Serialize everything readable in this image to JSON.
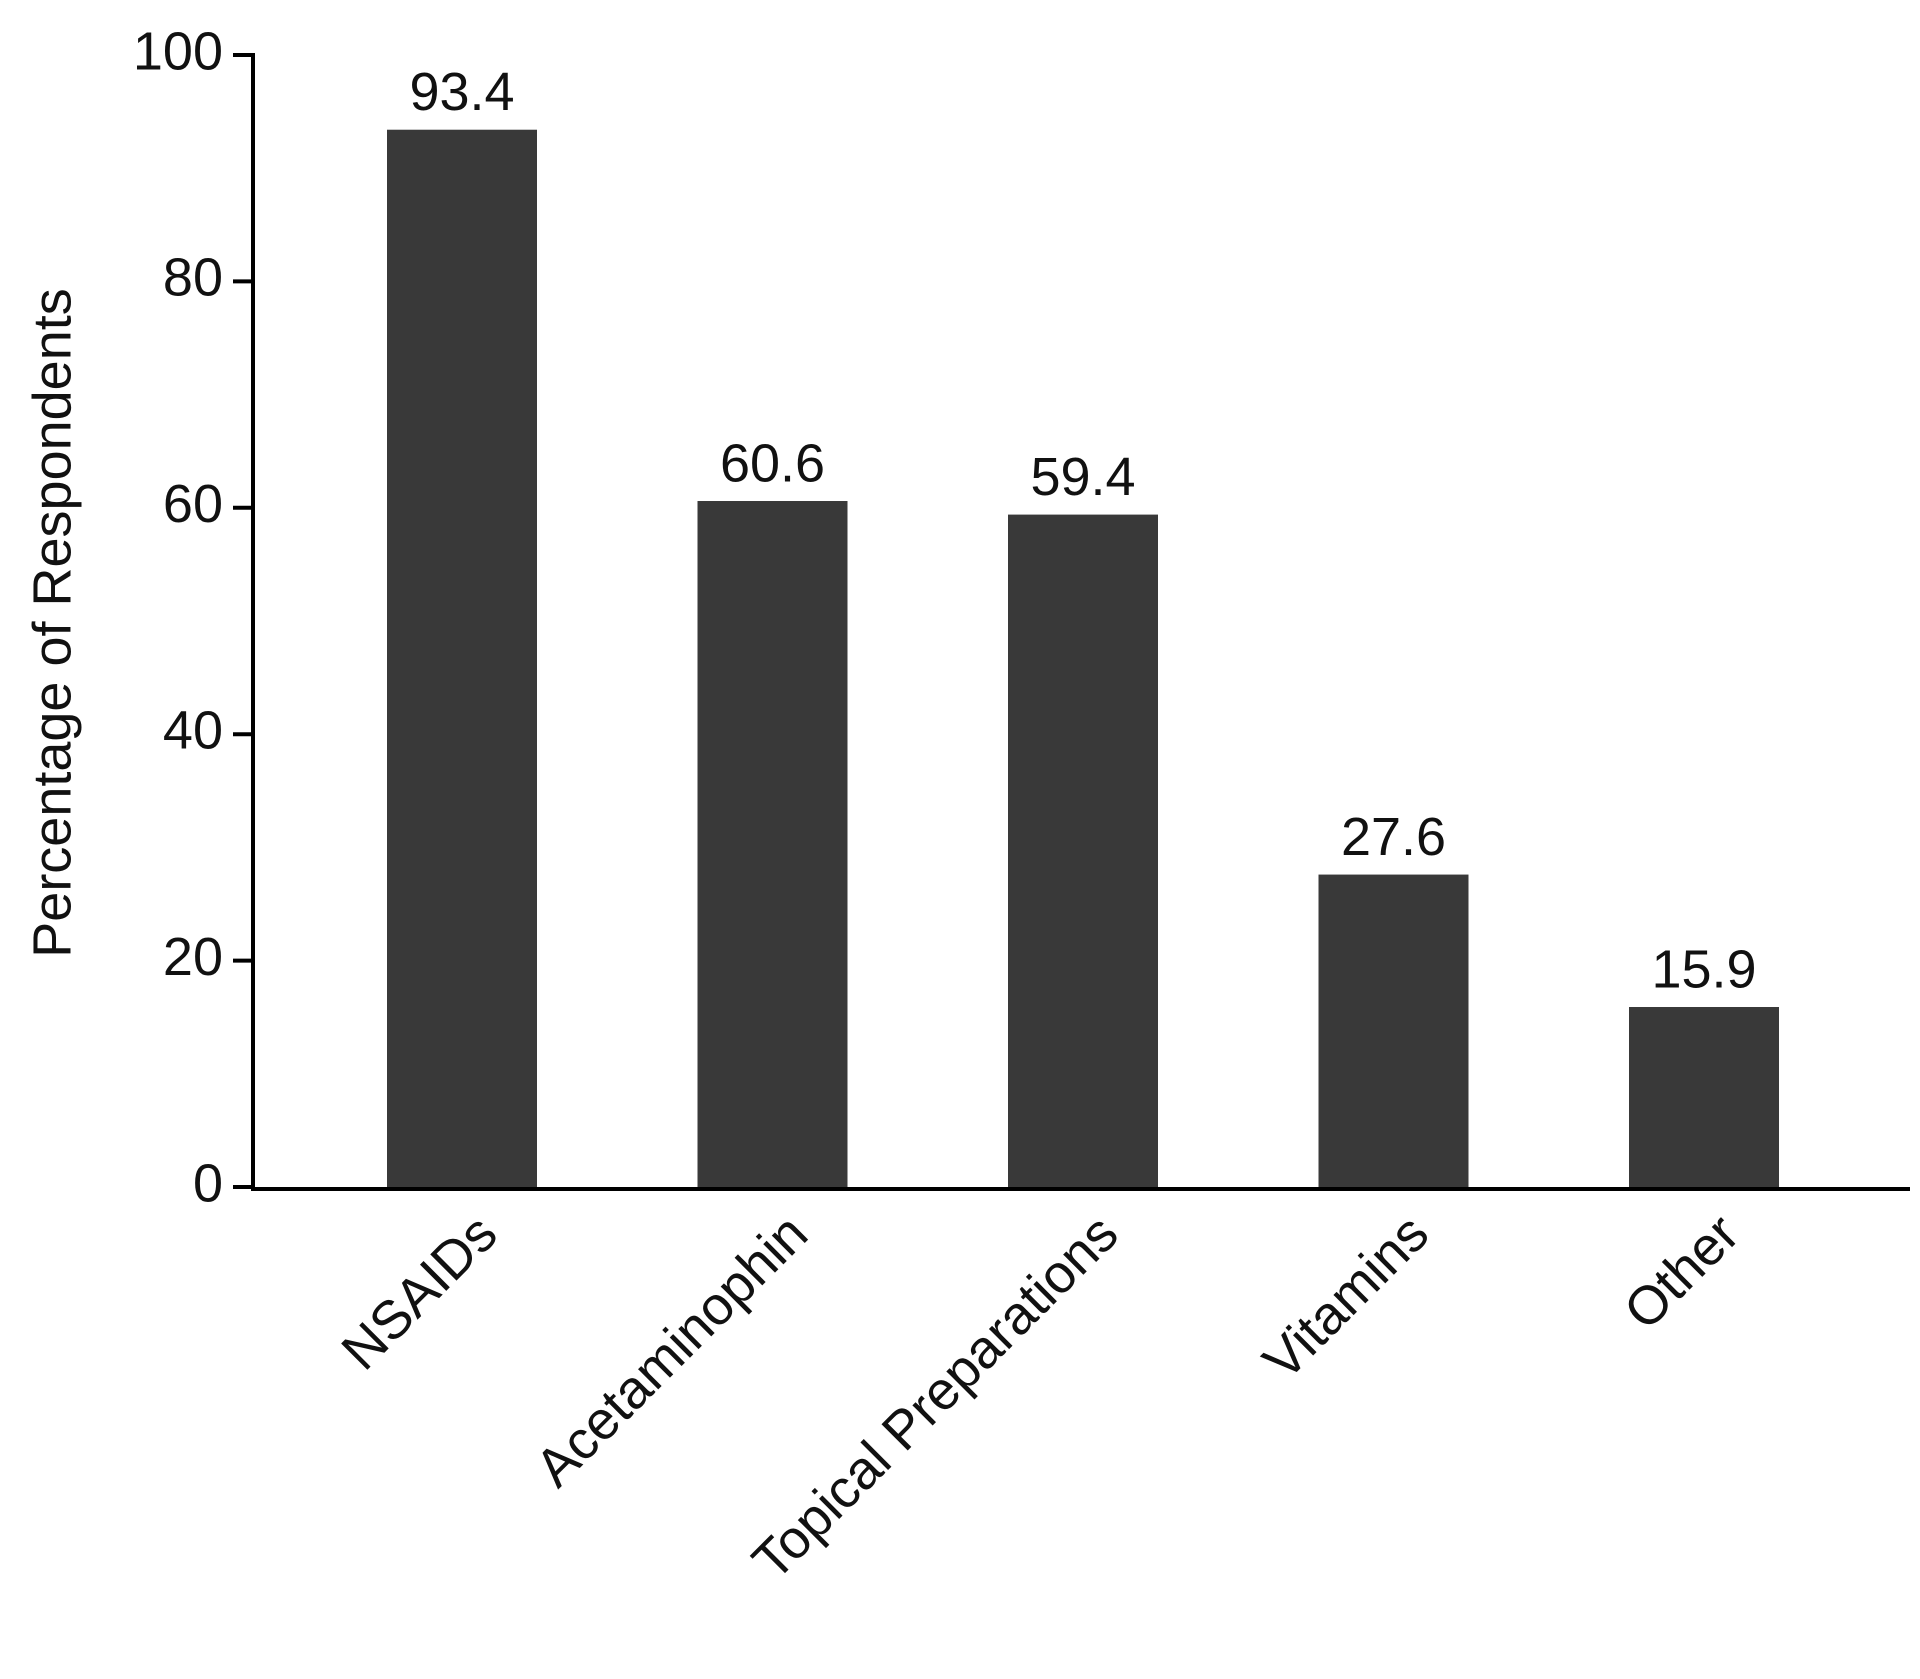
{
  "chart_data": {
    "type": "bar",
    "y_label": "Percentage of Respondents",
    "categories": [
      "NSAIDs",
      "Acetaminophin",
      "Topical Preparations",
      "Vitamins",
      "Other"
    ],
    "values": [
      93.4,
      60.6,
      59.4,
      27.6,
      15.9
    ],
    "color": "#393939",
    "ylim": [
      0,
      100
    ],
    "yticks": [
      0,
      20,
      40,
      60,
      80,
      100
    ],
    "grid": false
  }
}
